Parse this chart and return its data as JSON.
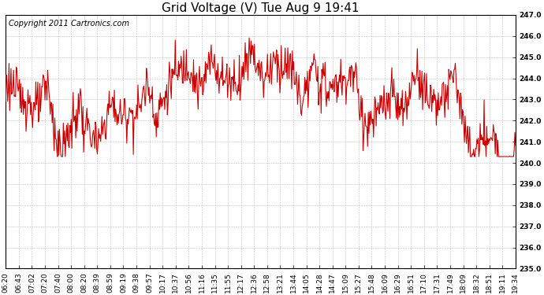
{
  "title": "Grid Voltage (V) Tue Aug 9 19:41",
  "copyright_text": "Copyright 2011 Cartronics.com",
  "line_color": "#cc0000",
  "background_color": "#ffffff",
  "plot_bg_color": "#ffffff",
  "grid_color": "#bbbbbb",
  "ylim": [
    235.0,
    247.0
  ],
  "yticks": [
    235.0,
    236.0,
    237.0,
    238.0,
    239.0,
    240.0,
    241.0,
    242.0,
    243.0,
    244.0,
    245.0,
    246.0,
    247.0
  ],
  "xtick_labels": [
    "06:20",
    "06:43",
    "07:02",
    "07:20",
    "07:40",
    "08:00",
    "08:20",
    "08:39",
    "08:59",
    "09:19",
    "09:38",
    "09:57",
    "10:17",
    "10:37",
    "10:56",
    "11:16",
    "11:35",
    "11:55",
    "12:17",
    "12:36",
    "12:58",
    "13:21",
    "13:44",
    "14:05",
    "14:28",
    "14:47",
    "15:09",
    "15:27",
    "15:48",
    "16:09",
    "16:29",
    "16:51",
    "17:10",
    "17:31",
    "17:49",
    "18:09",
    "18:32",
    "18:51",
    "19:11",
    "19:34"
  ],
  "title_fontsize": 11,
  "copyright_fontsize": 7,
  "tick_fontsize": 6.5,
  "line_width": 0.8,
  "figsize": [
    6.9,
    3.75
  ],
  "dpi": 100
}
